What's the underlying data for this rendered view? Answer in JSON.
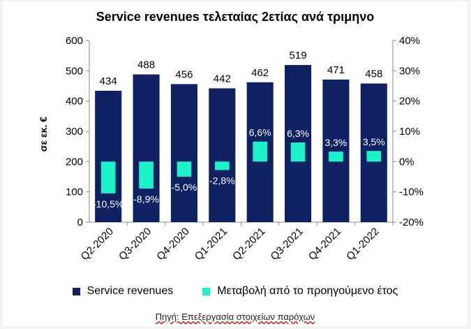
{
  "chart_data": {
    "type": "bar",
    "title": "Service revenues τελεταίας 2ετίας ανά τριμηνο",
    "ylabel": "σε εκ. €",
    "categories": [
      "Q2-2020",
      "Q3-2020",
      "Q4-2020",
      "Q1-2021",
      "Q2-2021",
      "Q3-2021",
      "Q4-2021",
      "Q1-2022"
    ],
    "series": [
      {
        "name": "Service revenues",
        "axis": "left",
        "values": [
          434,
          488,
          456,
          442,
          462,
          519,
          471,
          458
        ],
        "labels": [
          "434",
          "488",
          "456",
          "442",
          "462",
          "519",
          "471",
          "458"
        ]
      },
      {
        "name": "Μεταβολή από το προηγούμενο έτος",
        "axis": "right",
        "values": [
          -10.5,
          -8.9,
          -5.0,
          -2.8,
          6.6,
          6.3,
          3.3,
          3.5
        ],
        "labels": [
          "-10,5%",
          "-8,9%",
          "-5,0%",
          "-2,8%",
          "6,6%",
          "6,3%",
          "3,3%",
          "3,5%"
        ]
      }
    ],
    "ylim": [
      0,
      600
    ],
    "y_ticks": [
      "0",
      "100",
      "200",
      "300",
      "400",
      "500",
      "600"
    ],
    "y2lim": [
      -20,
      40
    ],
    "y2_ticks": [
      "-20%",
      "-10%",
      "0%",
      "10%",
      "20%",
      "30%",
      "40%"
    ],
    "grid": false,
    "legend": "bottom",
    "colors": {
      "revenues": "#0e2163",
      "change": "#1cf2c8"
    }
  },
  "source": "Πηγή: Επεξεργασία στοιχείων παρόχων"
}
